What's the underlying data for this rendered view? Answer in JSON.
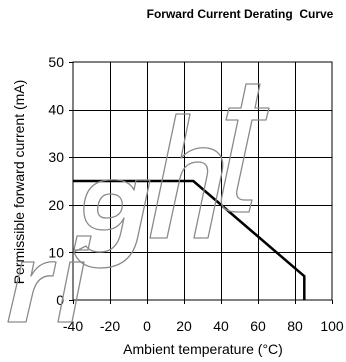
{
  "colors": {
    "background": "#ffffff",
    "line": "#000000",
    "grid": "#000000",
    "text": "#000000",
    "watermark": "#8a8a8a"
  },
  "chart_data": {
    "type": "line",
    "title": "Forward Current Derating  Curve",
    "xlabel": "Ambient temperature (°C)",
    "ylabel": "Permissible forward current (mA)",
    "xlim": [
      -40,
      100
    ],
    "ylim": [
      0,
      50
    ],
    "xticks": [
      -40,
      -20,
      0,
      20,
      40,
      60,
      80,
      100
    ],
    "yticks": [
      0,
      10,
      20,
      30,
      40,
      50
    ],
    "grid": true,
    "legend": "none",
    "series": [
      {
        "x": [
          -40,
          25,
          85,
          85
        ],
        "y": [
          25,
          25,
          5,
          0
        ]
      }
    ]
  },
  "watermark": {
    "text": "right"
  }
}
